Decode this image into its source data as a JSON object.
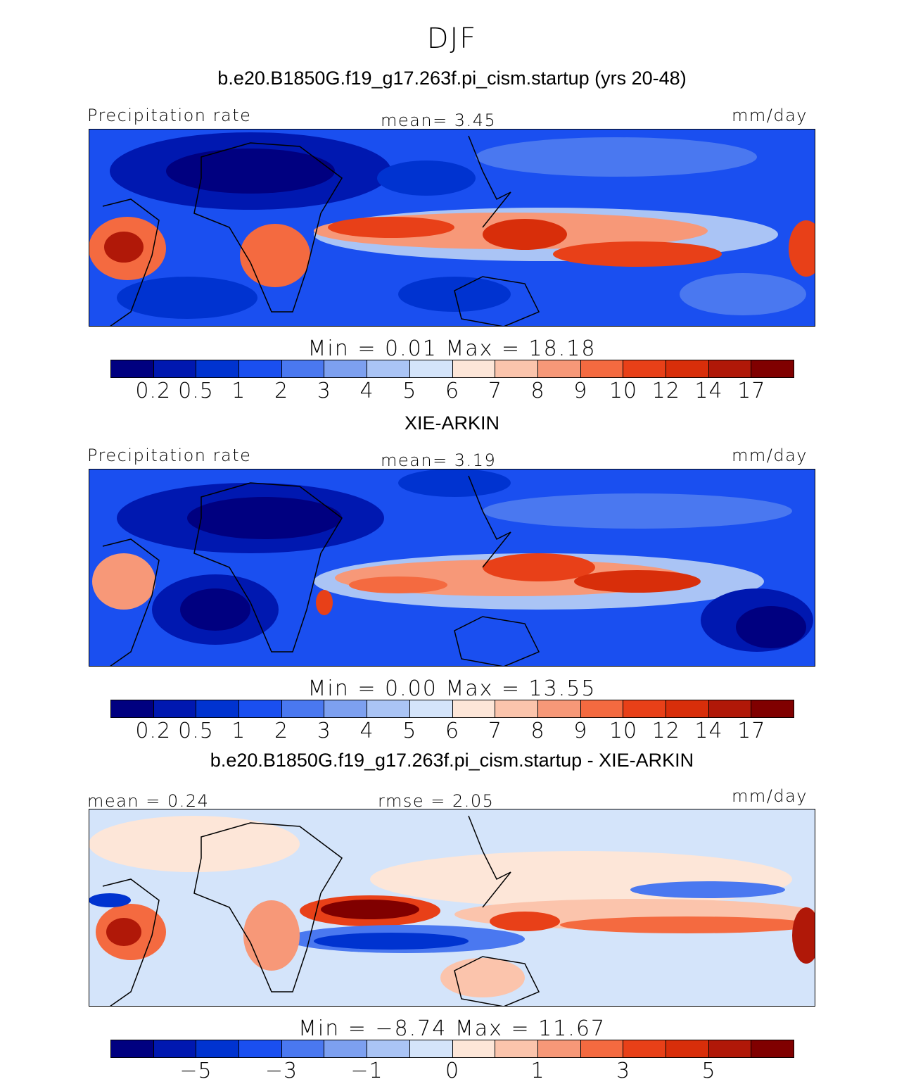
{
  "figure": {
    "season": "DJF"
  },
  "panels": [
    {
      "title": "b.e20.B1850G.f19_g17.263f.pi_cism.startup (yrs 20-48)",
      "left_label": "Precipitation rate",
      "center_label": "mean=   3.45",
      "right_label": "mm/day",
      "stats": "Min =    0.01  Max =   18.18"
    },
    {
      "title": "XIE-ARKIN",
      "left_label": "Precipitation rate",
      "center_label": "mean=   3.19",
      "right_label": "mm/day",
      "stats": "Min =    0.00  Max =   13.55"
    },
    {
      "title": "b.e20.B1850G.f19_g17.263f.pi_cism.startup - XIE-ARKIN",
      "left_label": "mean =    0.24",
      "center_label": "rmse =    2.05",
      "right_label": "mm/day",
      "stats": "Min =  −8.74  Max =   11.67"
    }
  ],
  "colorbars": {
    "abs": {
      "colors": [
        "#000080",
        "#0018b0",
        "#0033d0",
        "#1a4ff0",
        "#4a78f0",
        "#7da0f0",
        "#aac4f5",
        "#d4e4fa",
        "#fde6d8",
        "#fbc4ac",
        "#f79878",
        "#f46a40",
        "#e84018",
        "#d82e0a",
        "#b01808",
        "#800000"
      ],
      "ticks": [
        "0.2",
        "0.5",
        "1",
        "2",
        "3",
        "4",
        "5",
        "6",
        "7",
        "8",
        "9",
        "10",
        "12",
        "14",
        "17"
      ]
    },
    "diff": {
      "colors": [
        "#000080",
        "#0018b0",
        "#0033d0",
        "#1a4ff0",
        "#4a78f0",
        "#7da0f0",
        "#aac4f5",
        "#d4e4fa",
        "#fde6d8",
        "#fbc4ac",
        "#f79878",
        "#f46a40",
        "#e84018",
        "#d82e0a",
        "#b01808",
        "#800000"
      ],
      "ticks": [
        "−5",
        "−3",
        "−1",
        "0",
        "1",
        "3",
        "5"
      ]
    }
  },
  "chart_data": [
    {
      "type": "heatmap",
      "title": "b.e20.B1850G.f19_g17.263f.pi_cism.startup (yrs 20-48)",
      "variable": "Precipitation rate",
      "units": "mm/day",
      "mean": 3.45,
      "min": 0.01,
      "max": 18.18,
      "contour_levels": [
        0.2,
        0.5,
        1,
        2,
        3,
        4,
        5,
        6,
        7,
        8,
        9,
        10,
        12,
        14,
        17
      ]
    },
    {
      "type": "heatmap",
      "title": "XIE-ARKIN",
      "variable": "Precipitation rate",
      "units": "mm/day",
      "mean": 3.19,
      "min": 0.0,
      "max": 13.55,
      "contour_levels": [
        0.2,
        0.5,
        1,
        2,
        3,
        4,
        5,
        6,
        7,
        8,
        9,
        10,
        12,
        14,
        17
      ]
    },
    {
      "type": "heatmap",
      "title": "b.e20.B1850G.f19_g17.263f.pi_cism.startup - XIE-ARKIN",
      "units": "mm/day",
      "mean": 0.24,
      "rmse": 2.05,
      "min": -8.74,
      "max": 11.67,
      "contour_levels": [
        -5,
        -3,
        -1,
        0,
        1,
        3,
        5
      ]
    }
  ]
}
